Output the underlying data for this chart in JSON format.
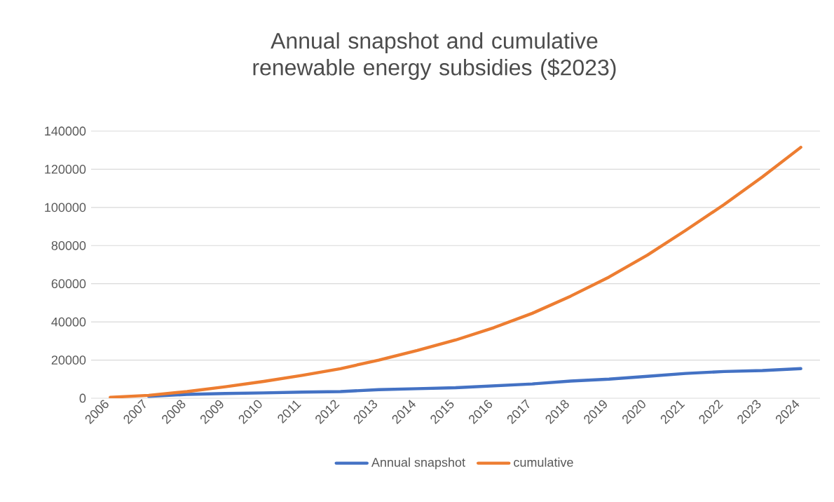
{
  "chart_data": {
    "type": "line",
    "title": "Annual snapshot and cumulative renewable energy subsidies ($2023)",
    "categories": [
      "2006",
      "2007",
      "2008",
      "2009",
      "2010",
      "2011",
      "2012",
      "2013",
      "2014",
      "2015",
      "2016",
      "2017",
      "2018",
      "2019",
      "2020",
      "2021",
      "2022",
      "2023",
      "2024"
    ],
    "series": [
      {
        "name": "Annual snapshot",
        "color": "#4472c4",
        "values": [
          null,
          1000,
          2000,
          2500,
          2800,
          3200,
          3500,
          4500,
          5000,
          5500,
          6500,
          7500,
          9000,
          10000,
          11500,
          13000,
          14000,
          14500,
          15500
        ]
      },
      {
        "name": "cumulative",
        "color": "#ed7d31",
        "values": [
          500,
          1500,
          3500,
          6000,
          8800,
          12000,
          15500,
          20000,
          25000,
          30500,
          37000,
          44500,
          53500,
          63500,
          75000,
          88000,
          101500,
          116000,
          131500
        ]
      }
    ],
    "ylim": [
      0,
      140000
    ],
    "yticks": [
      0,
      20000,
      40000,
      60000,
      80000,
      100000,
      120000,
      140000
    ],
    "grid": "y",
    "legend": "bottom",
    "marker": "none",
    "line_style": "solid"
  }
}
